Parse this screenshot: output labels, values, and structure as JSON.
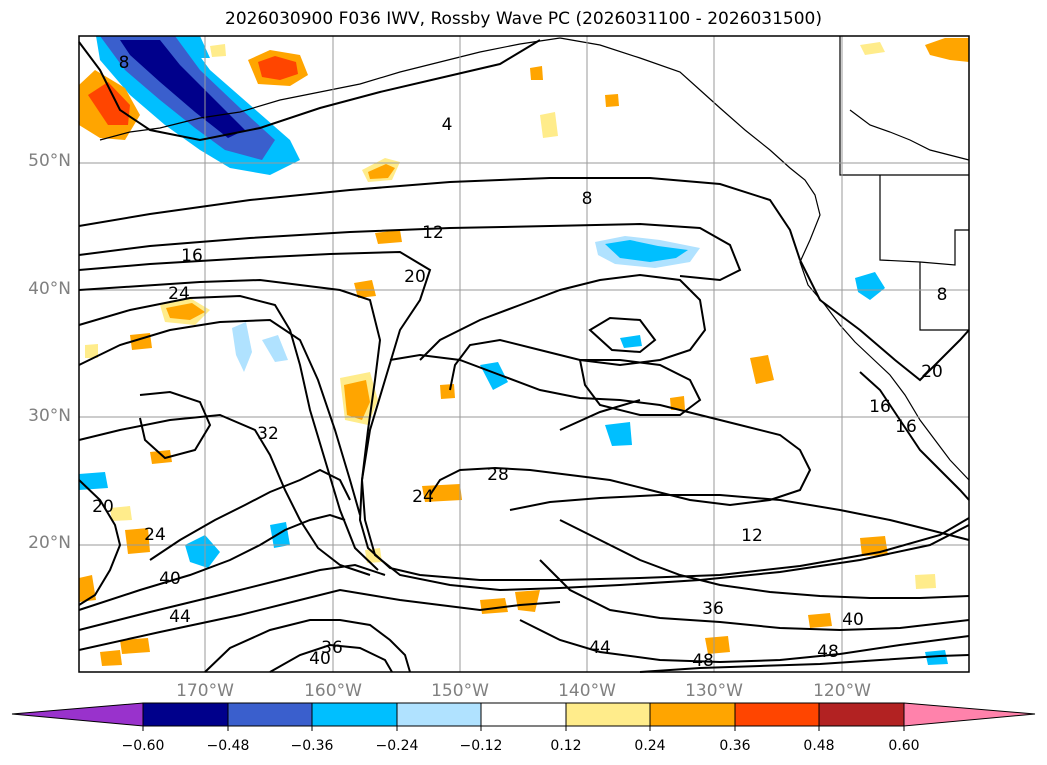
{
  "title": "2026030900 F036 IWV, Rossby Wave PC (2026031100 - 2026031500)",
  "map": {
    "lat_labels": [
      "50°N",
      "40°N",
      "30°N",
      "20°N"
    ],
    "lon_labels": [
      "170°W",
      "160°W",
      "150°W",
      "140°W",
      "130°W",
      "120°W"
    ],
    "contour_labels": [
      "8",
      "4",
      "8",
      "12",
      "16",
      "20",
      "24",
      "32",
      "28",
      "24",
      "20",
      "24",
      "40",
      "44",
      "36",
      "40",
      "44",
      "48",
      "36",
      "12",
      "40",
      "48",
      "20",
      "16",
      "16",
      "8"
    ]
  },
  "colorbar": {
    "ticks": [
      "−0.60",
      "−0.48",
      "−0.36",
      "−0.24",
      "−0.12",
      "0.12",
      "0.24",
      "0.36",
      "0.48",
      "0.60"
    ],
    "colors": [
      "#9932cc",
      "#00008b",
      "#3a5fcd",
      "#00bfff",
      "#b0e2ff",
      "#ffffff",
      "#ffec8b",
      "#ffa500",
      "#ff4500",
      "#b22222",
      "#ff82ab"
    ]
  }
}
